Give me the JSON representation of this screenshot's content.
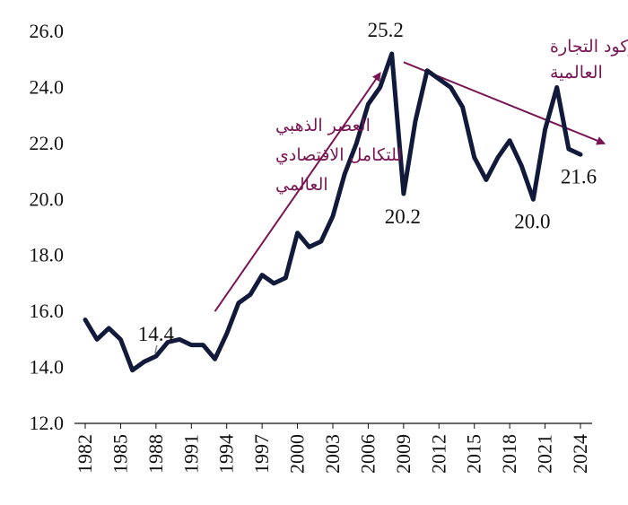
{
  "chart_data": {
    "type": "line",
    "title": "",
    "xlabel": "",
    "ylabel": "",
    "ylim": [
      12.0,
      26.0
    ],
    "y_ticks": [
      "12.0",
      "14.0",
      "16.0",
      "18.0",
      "20.0",
      "22.0",
      "24.0",
      "26.0"
    ],
    "x_ticks": [
      "1982",
      "1985",
      "1988",
      "1991",
      "1994",
      "1997",
      "2000",
      "2003",
      "2006",
      "2009",
      "2012",
      "2015",
      "2018",
      "2021",
      "2024"
    ],
    "x": [
      1982,
      1983,
      1984,
      1985,
      1986,
      1987,
      1988,
      1989,
      1990,
      1991,
      1992,
      1993,
      1994,
      1995,
      1996,
      1997,
      1998,
      1999,
      2000,
      2001,
      2002,
      2003,
      2004,
      2005,
      2006,
      2007,
      2008,
      2009,
      2010,
      2011,
      2012,
      2013,
      2014,
      2015,
      2016,
      2017,
      2018,
      2019,
      2020,
      2021,
      2022,
      2023,
      2024
    ],
    "series": [
      {
        "values": [
          15.7,
          15.0,
          15.4,
          15.0,
          13.9,
          14.2,
          14.4,
          14.9,
          15.0,
          14.8,
          14.8,
          14.3,
          15.2,
          16.3,
          16.6,
          17.3,
          17.0,
          17.2,
          18.8,
          18.3,
          18.5,
          19.4,
          20.9,
          22.0,
          23.4,
          24.0,
          25.2,
          20.2,
          22.8,
          24.6,
          24.3,
          24.0,
          23.3,
          21.5,
          20.7,
          21.5,
          22.1,
          21.2,
          20.0,
          22.5,
          24.0,
          21.8,
          21.6
        ],
        "color": "#111a3b"
      }
    ],
    "data_labels": [
      {
        "x": 1988,
        "text": "14.4"
      },
      {
        "x": 2008,
        "text": "25.2"
      },
      {
        "x": 2009,
        "text": "20.2"
      },
      {
        "x": 2020,
        "text": "20.0"
      },
      {
        "x": 2024,
        "text": "21.6"
      }
    ],
    "annotations": [
      {
        "lines": [
          "العصر الذهبي",
          "للتكامل الاقتصادي",
          "العالمي"
        ],
        "color": "#7a1553"
      },
      {
        "lines": [
          "ركود التجارة",
          "العالمية"
        ],
        "color": "#7a1553"
      }
    ],
    "arrows": [
      {
        "from": [
          1993,
          16.0
        ],
        "to": [
          2007,
          24.5
        ],
        "color": "#7a1553"
      },
      {
        "from": [
          2009,
          24.9
        ],
        "to": [
          2026,
          22.0
        ],
        "color": "#7a1553"
      }
    ],
    "grid": false,
    "legend": "none"
  }
}
